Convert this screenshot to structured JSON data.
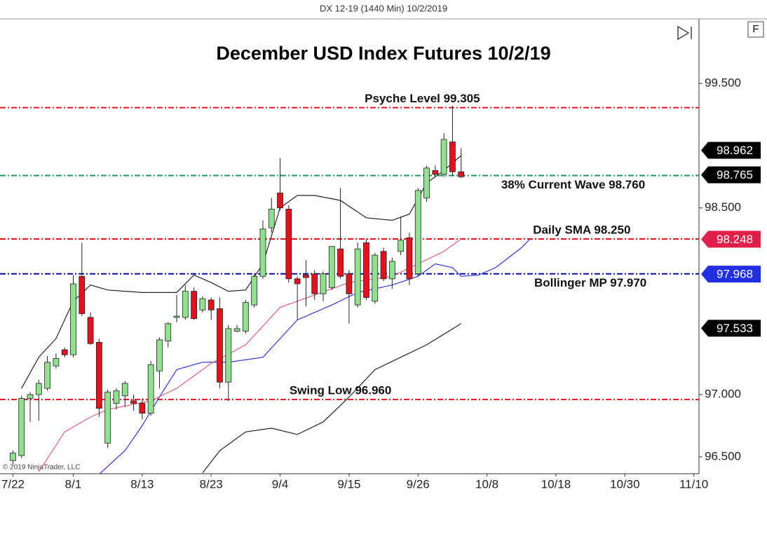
{
  "chart_data": {
    "type": "candlestick",
    "header": "DX 12-19 (1440 Min)  10/2/2019",
    "title": "December USD Index Futures 10/2/19",
    "copyright": "© 2019 NinjaTrader, LLC",
    "panel_button": "F",
    "xlim": [
      -1.5,
      79.6
    ],
    "xticks": [
      {
        "value": 0,
        "label": "7/22"
      },
      {
        "value": 7,
        "label": "8/1"
      },
      {
        "value": 15,
        "label": "8/13"
      },
      {
        "value": 23,
        "label": "8/23"
      },
      {
        "value": 31,
        "label": "9/4"
      },
      {
        "value": 39,
        "label": "9/15"
      },
      {
        "value": 47,
        "label": "9/26"
      },
      {
        "value": 55,
        "label": "10/8"
      },
      {
        "value": 63,
        "label": "10/18"
      },
      {
        "value": 71,
        "label": "10/30"
      },
      {
        "value": 79,
        "label": "11/10"
      }
    ],
    "ylim": [
      96.364,
      100.018
    ],
    "yticks": [
      {
        "value": 96.5,
        "label": "96.500"
      },
      {
        "value": 97.0,
        "label": "97.000"
      },
      {
        "value": 98.5,
        "label": "98.500"
      },
      {
        "value": 99.5,
        "label": "99.500"
      }
    ],
    "up_color": "#90e090",
    "down_color": "#e0141e",
    "candles": {
      "x": [
        0,
        1,
        2,
        3,
        4,
        5,
        6,
        7,
        8,
        9,
        10,
        11,
        12,
        13,
        14,
        15,
        16,
        17,
        18,
        19,
        20,
        21,
        22,
        23,
        24,
        25,
        26,
        27,
        28,
        29,
        30,
        31,
        32,
        33,
        34,
        35,
        36,
        37,
        38,
        39,
        40,
        41,
        42,
        43,
        44,
        45,
        46,
        47,
        48,
        49,
        50,
        51,
        52
      ],
      "open": [
        96.47,
        96.51,
        96.97,
        97.0,
        97.05,
        97.23,
        97.36,
        97.32,
        97.95,
        97.62,
        97.42,
        96.61,
        96.93,
        96.99,
        96.95,
        96.93,
        96.85,
        97.19,
        97.43,
        97.62,
        97.62,
        97.83,
        97.68,
        97.76,
        97.69,
        97.1,
        97.51,
        97.51,
        97.72,
        97.95,
        98.34,
        98.62,
        98.49,
        97.93,
        97.96,
        97.97,
        97.81,
        97.86,
        98.17,
        97.97,
        97.72,
        98.22,
        97.75,
        98.15,
        97.93,
        98.15,
        98.26,
        97.97,
        98.58,
        98.8,
        98.77,
        99.03,
        98.79
      ],
      "high": [
        96.55,
        96.99,
        97.02,
        97.12,
        97.31,
        97.33,
        97.38,
        97.96,
        98.22,
        97.66,
        97.45,
        97.04,
        97.05,
        97.11,
        97.0,
        96.97,
        97.27,
        97.46,
        97.58,
        97.8,
        97.88,
        97.86,
        97.79,
        97.78,
        97.78,
        97.56,
        97.56,
        97.76,
        97.97,
        98.4,
        98.58,
        98.9,
        98.52,
        97.95,
        98.08,
        98.0,
        97.99,
        98.19,
        98.66,
        98.0,
        98.22,
        98.25,
        98.14,
        98.18,
        98.1,
        98.43,
        98.3,
        98.66,
        98.84,
        98.84,
        99.1,
        99.32,
        98.98
      ],
      "low": [
        96.44,
        96.49,
        96.78,
        96.79,
        97.03,
        97.21,
        97.3,
        97.3,
        97.63,
        97.4,
        96.82,
        96.57,
        96.88,
        96.9,
        96.87,
        96.8,
        96.83,
        97.05,
        97.38,
        97.58,
        97.6,
        97.6,
        97.66,
        97.6,
        97.05,
        96.95,
        97.5,
        97.49,
        97.7,
        97.93,
        98.3,
        98.48,
        97.9,
        97.6,
        97.71,
        97.76,
        97.75,
        97.84,
        97.93,
        97.57,
        97.7,
        97.76,
        97.73,
        97.91,
        97.85,
        98.12,
        97.88,
        97.95,
        98.55,
        98.76,
        98.75,
        98.76,
        98.74
      ],
      "close": [
        96.53,
        96.97,
        97.0,
        97.09,
        97.26,
        97.29,
        97.32,
        97.89,
        97.65,
        97.41,
        96.89,
        97.02,
        97.03,
        97.09,
        96.93,
        96.85,
        97.24,
        97.44,
        97.57,
        97.63,
        97.83,
        97.61,
        97.77,
        97.68,
        97.1,
        97.53,
        97.53,
        97.74,
        97.95,
        98.33,
        98.49,
        98.5,
        97.93,
        97.89,
        97.94,
        97.81,
        97.97,
        98.19,
        97.95,
        97.81,
        98.17,
        97.78,
        98.12,
        97.93,
        98.07,
        98.24,
        97.93,
        98.64,
        98.82,
        98.77,
        99.05,
        98.79,
        98.75
      ]
    },
    "series": [
      {
        "color": "#222222",
        "x": [
          1,
          3,
          5,
          7,
          9,
          11,
          15,
          19,
          21,
          23,
          25,
          27,
          29,
          31,
          33,
          35,
          38,
          41,
          44,
          46,
          48,
          50,
          52
        ],
        "values": [
          97.05,
          97.3,
          97.45,
          97.75,
          97.88,
          97.84,
          97.82,
          97.82,
          97.96,
          97.9,
          97.83,
          97.84,
          98.05,
          98.5,
          98.6,
          98.6,
          98.56,
          98.42,
          98.4,
          98.45,
          98.7,
          98.8,
          98.92
        ]
      },
      {
        "color": "#222222",
        "x": [
          22,
          24,
          27,
          30,
          33,
          36,
          39,
          42,
          45,
          48,
          52
        ],
        "values": [
          96.37,
          96.55,
          96.7,
          96.73,
          96.68,
          96.78,
          96.98,
          97.2,
          97.3,
          97.4,
          97.57
        ]
      },
      {
        "color": "#3535d8",
        "x": [
          10,
          13,
          15,
          17,
          19,
          22,
          25,
          29,
          31,
          33,
          37,
          40,
          44,
          47,
          49,
          51,
          52,
          54,
          56,
          59,
          60
        ],
        "values": [
          96.36,
          96.55,
          96.75,
          96.98,
          97.2,
          97.26,
          97.26,
          97.3,
          97.45,
          97.6,
          97.72,
          97.82,
          97.88,
          97.95,
          98.05,
          98.02,
          97.95,
          97.96,
          98.02,
          98.18,
          98.25
        ]
      },
      {
        "color": "#e06080",
        "x": [
          3,
          6,
          9,
          11,
          16,
          19,
          23,
          27,
          31,
          35,
          39,
          44,
          47,
          50,
          52
        ],
        "values": [
          96.38,
          96.7,
          96.82,
          96.88,
          96.95,
          97.05,
          97.25,
          97.4,
          97.7,
          97.8,
          97.9,
          97.95,
          98.05,
          98.15,
          98.25
        ]
      }
    ],
    "levels": [
      {
        "label": "Psyche Level 99.305",
        "value": 99.305,
        "color": "#e0141e",
        "label_x": 47.5,
        "label_side": "above"
      },
      {
        "label": "38% Current Wave 98.760",
        "value": 98.76,
        "color": "#1a9a5a",
        "label_x": 65,
        "label_side": "below"
      },
      {
        "label": "Daily SMA 98.250",
        "value": 98.25,
        "color": "#e0141e",
        "label_x": 66,
        "label_side": "above"
      },
      {
        "label": "Bollinger MP 97.970",
        "value": 97.97,
        "color": "#0a0a9a",
        "label_x": 67,
        "label_side": "below"
      },
      {
        "label": "Swing Low 96.960",
        "value": 96.96,
        "color": "#e0141e",
        "label_x": 38,
        "label_side": "above"
      }
    ],
    "markers": [
      {
        "value": 98.962,
        "color": "#000000"
      },
      {
        "value": 98.765,
        "color": "#000000"
      },
      {
        "value": 98.248,
        "color": "#e0204a"
      },
      {
        "value": 97.968,
        "color": "#2030e0"
      },
      {
        "value": 97.533,
        "color": "#000000"
      }
    ]
  }
}
